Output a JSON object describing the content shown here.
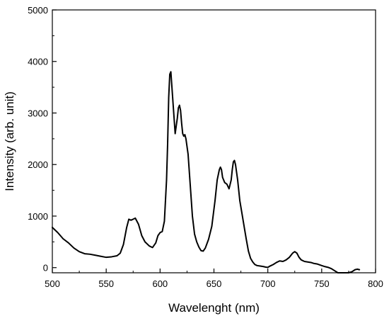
{
  "chart_data": {
    "type": "line",
    "xlabel": "Wavelenght (nm)",
    "ylabel": "Intensity (arb. unit)",
    "xlim": [
      500,
      800
    ],
    "ylim": [
      -100,
      5000
    ],
    "x_ticks": [
      500,
      550,
      600,
      650,
      700,
      750,
      800
    ],
    "x_tick_labels": [
      "500",
      "550",
      "600",
      "650",
      "700",
      "750",
      "800"
    ],
    "y_ticks": [
      0,
      1000,
      2000,
      3000,
      4000,
      5000
    ],
    "y_tick_labels": [
      "0",
      "1000",
      "2000",
      "3000",
      "4000",
      "5000"
    ],
    "grid": false,
    "line_color": "#000000",
    "series": [
      {
        "x": [
          500,
          505,
          510,
          515,
          520,
          525,
          530,
          535,
          540,
          545,
          550,
          555,
          560,
          563,
          566,
          569,
          571,
          573,
          575,
          577,
          580,
          583,
          586,
          590,
          593,
          596,
          598,
          600,
          602,
          604,
          606,
          607,
          608,
          609,
          610,
          612,
          614,
          616,
          617,
          618,
          619,
          620,
          621,
          622,
          623,
          624,
          626,
          628,
          630,
          632,
          634,
          636,
          638,
          640,
          642,
          645,
          648,
          651,
          653,
          655,
          656,
          657,
          658,
          660,
          662,
          664,
          666,
          667,
          668,
          669,
          670,
          672,
          674,
          676,
          678,
          680,
          682,
          684,
          686,
          688,
          690,
          693,
          696,
          698,
          700,
          702,
          705,
          708,
          711,
          714,
          717,
          720,
          723,
          725,
          727,
          729,
          731,
          734,
          737,
          740,
          743,
          746,
          750,
          753,
          756,
          759,
          762,
          765,
          770,
          775,
          778,
          781,
          783,
          785
        ],
        "y": [
          780,
          680,
          560,
          480,
          380,
          310,
          270,
          260,
          240,
          220,
          200,
          210,
          230,
          280,
          450,
          780,
          940,
          920,
          940,
          960,
          840,
          620,
          500,
          420,
          390,
          480,
          620,
          680,
          700,
          900,
          1700,
          2400,
          3300,
          3750,
          3800,
          3200,
          2600,
          2900,
          3100,
          3150,
          3050,
          2800,
          2600,
          2550,
          2580,
          2500,
          2200,
          1600,
          1000,
          650,
          500,
          400,
          330,
          320,
          380,
          550,
          800,
          1300,
          1700,
          1900,
          1950,
          1900,
          1750,
          1650,
          1620,
          1530,
          1700,
          1900,
          2050,
          2080,
          2000,
          1700,
          1300,
          1050,
          800,
          550,
          320,
          180,
          110,
          60,
          40,
          30,
          20,
          10,
          5,
          30,
          60,
          100,
          130,
          120,
          150,
          200,
          280,
          310,
          280,
          200,
          150,
          120,
          110,
          100,
          80,
          70,
          40,
          20,
          5,
          -20,
          -60,
          -100,
          -100,
          -100,
          -80,
          -40,
          -30,
          -40
        ]
      }
    ]
  }
}
